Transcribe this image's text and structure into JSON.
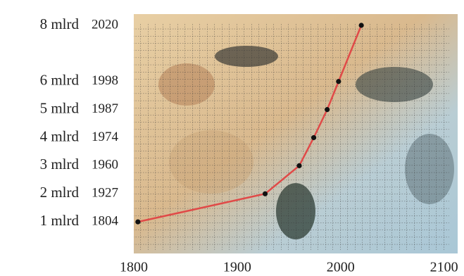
{
  "chart_data": {
    "type": "line",
    "x": [
      1804,
      1927,
      1960,
      1974,
      1987,
      1998,
      2020
    ],
    "values": [
      1,
      2,
      3,
      4,
      5,
      6,
      8
    ],
    "value_labels": [
      "1 mlrd",
      "2 mlrd",
      "3 mlrd",
      "4 mlrd",
      "5 mlrd",
      "6 mlrd",
      "8 mlrd"
    ],
    "color": "#e04a48",
    "xlim": [
      1800,
      2105
    ],
    "xticks": [
      1800,
      1900,
      2000,
      2100
    ],
    "ylim": [
      0,
      8.1
    ]
  }
}
